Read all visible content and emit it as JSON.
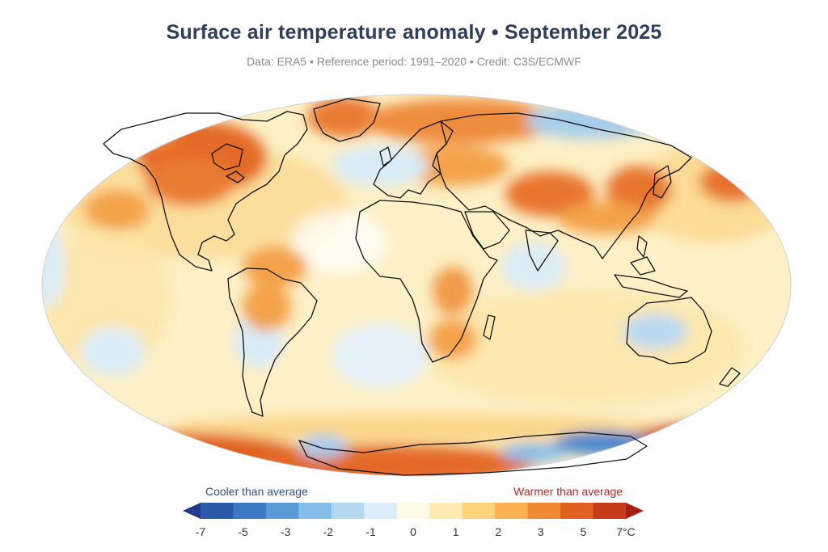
{
  "title": "Surface air temperature anomaly • September 2025",
  "subtitle": "Data: ERA5 • Reference period: 1991–2020 • Credit: C3S/ECMWF",
  "legend": {
    "cooler_label": "Cooler than average",
    "warmer_label": "Warmer than average",
    "ticks": [
      "-7",
      "-5",
      "-3",
      "-2",
      "-1",
      "0",
      "1",
      "2",
      "3",
      "5",
      "7°C"
    ],
    "colors": [
      "#1f3a8a",
      "#2c5aa8",
      "#3f78c2",
      "#5b9ad6",
      "#86bde8",
      "#b4d8f0",
      "#dcecf8",
      "#fdfbe8",
      "#fdeab0",
      "#fcd27a",
      "#f8b250",
      "#f08a32",
      "#e0601f",
      "#c83a1a",
      "#a51d14"
    ]
  },
  "colors": {
    "ocean_base": "#fdf3cf",
    "warm_light": "#fbd68a",
    "warm_mid": "#f3a24a",
    "warm_strong": "#e36a27",
    "warm_extreme": "#c2321a",
    "cool_light": "#d8ebf7",
    "cool_mid": "#a8cdec",
    "cool_strong": "#4a86cf"
  }
}
